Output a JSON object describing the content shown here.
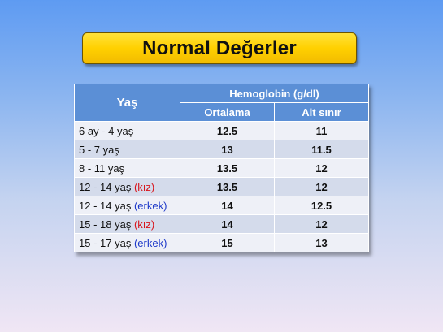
{
  "title": "Normal Değerler",
  "table": {
    "header_age": "Yaş",
    "header_hb": "Hemoglobin (g/dl)",
    "header_mean": "Ortalama",
    "header_lower": "Alt sınır",
    "rows": [
      {
        "age": "6 ay - 4 yaş",
        "tag": "",
        "mean": "12.5",
        "lower": "11"
      },
      {
        "age": "5 - 7 yaş",
        "tag": "",
        "mean": "13",
        "lower": "11.5"
      },
      {
        "age": "8 - 11 yaş",
        "tag": "",
        "mean": "13.5",
        "lower": "12"
      },
      {
        "age": "12 - 14 yaş",
        "tag": "(kız)",
        "mean": "13.5",
        "lower": "12"
      },
      {
        "age": "12 - 14 yaş",
        "tag": "(erkek)",
        "mean": "14",
        "lower": "12.5"
      },
      {
        "age": "15 - 18 yaş",
        "tag": "(kız)",
        "mean": "14",
        "lower": "12"
      },
      {
        "age": "15 - 17 yaş",
        "tag": "(erkek)",
        "mean": "15",
        "lower": "13"
      }
    ]
  },
  "colors": {
    "header_bg": "#5b8fd6",
    "row_light": "#eef0f7",
    "row_dark": "#d4dbeb",
    "female_tag": "#d8141b",
    "male_tag": "#1d39c9",
    "title_bg": "#ffd000"
  }
}
